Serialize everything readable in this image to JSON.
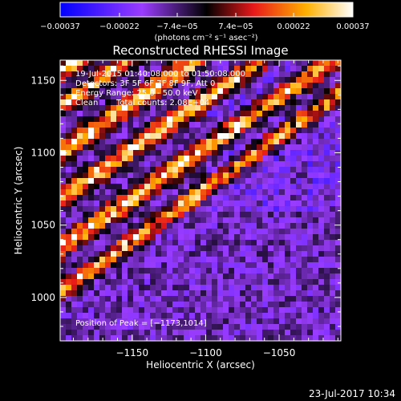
{
  "chart_data": {
    "type": "heatmap",
    "title": "Reconstructed RHESSI Image",
    "xlabel": "Heliocentric X (arcsec)",
    "ylabel": "Heliocentric Y (arcsec)",
    "xlim": [
      -1199,
      -1008
    ],
    "ylim": [
      970,
      1164
    ],
    "x_ticks": [
      -1150,
      -1100,
      -1050
    ],
    "x_tick_labels": [
      "−1150",
      "−1100",
      "−1050"
    ],
    "y_ticks": [
      1000,
      1050,
      1100,
      1150
    ],
    "y_tick_labels": [
      "1000",
      "1050",
      "1100",
      "1150"
    ],
    "colorbar": {
      "range": [
        -0.00037,
        0.00037
      ],
      "tick_values": [
        -0.00037,
        -0.00022,
        -7.4e-05,
        7.4e-05,
        0.00022,
        0.00037
      ],
      "tick_labels": [
        "−0.00037",
        "−0.00022",
        "−7.4e−05",
        "7.4e−05",
        "0.00022",
        "0.00037"
      ],
      "unit_label": "(photons cm⁻² s⁻¹ asec⁻²)",
      "colors": [
        "#0000ff",
        "#9b3cff",
        "#000000",
        "#e8181a",
        "#ffb000",
        "#ffffff"
      ]
    },
    "annotations": [
      "19-Jul-2015 01:40:08.000 to 01:50:08.000",
      "Detectors: 3F 5F 6F 7F 8F 9F, Att 0",
      "Energy Range: 25.0 - 50.0 keV",
      "Clean",
      "Total counts: 2.08E+04"
    ],
    "peak": {
      "label": "Position of Peak = [−1173,1014]",
      "x": -1173,
      "y": 1014
    },
    "pattern": {
      "description_free": true,
      "background_value": -0.00012,
      "ridges": [
        {
          "y_at_xmin": 1156,
          "slope": 0.68,
          "width": 7,
          "peak": 0.00037
        },
        {
          "y_at_xmin": 1132,
          "slope": 0.7,
          "width": 7,
          "peak": 0.00033
        },
        {
          "y_at_xmin": 1100,
          "slope": 0.7,
          "width": 8,
          "peak": 0.00036
        },
        {
          "y_at_xmin": 1068,
          "slope": 0.7,
          "width": 8,
          "peak": 0.00034
        },
        {
          "y_at_xmin": 1034,
          "slope": 0.7,
          "width": 8,
          "peak": 0.00035
        },
        {
          "y_at_xmin": 1004,
          "slope": 0.72,
          "width": 7,
          "peak": 0.0003
        }
      ]
    }
  },
  "footer": {
    "timestamp": "23-Jul-2017 10:34"
  }
}
